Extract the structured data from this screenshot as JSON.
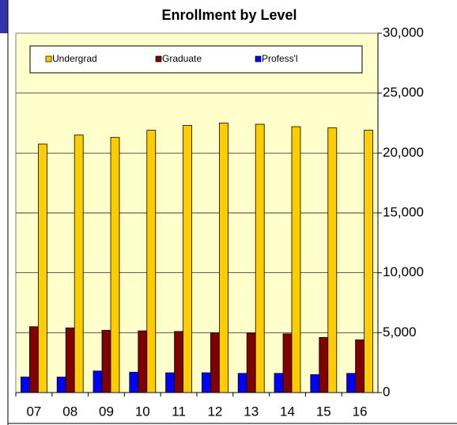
{
  "chart_data": {
    "type": "bar",
    "title": "Enrollment  by Level",
    "categories": [
      "07",
      "08",
      "09",
      "10",
      "11",
      "12",
      "13",
      "14",
      "15",
      "16"
    ],
    "series": [
      {
        "name": "Undergrad",
        "color": "#ffcc00",
        "values": [
          20750,
          21500,
          21300,
          21900,
          22300,
          22500,
          22400,
          22200,
          22100,
          21900
        ]
      },
      {
        "name": "Graduate",
        "color": "#800000",
        "values": [
          5500,
          5400,
          5200,
          5150,
          5100,
          5000,
          4950,
          4900,
          4600,
          4400
        ]
      },
      {
        "name": "Profess'l",
        "color": "#0000ff",
        "values": [
          1300,
          1300,
          1800,
          1700,
          1650,
          1650,
          1600,
          1600,
          1500,
          1600
        ]
      }
    ],
    "ylim": [
      0,
      30000
    ],
    "yticks": [
      0,
      {
        "value": 5000,
        "label": "5,000"
      },
      {
        "value": 10000,
        "label": "10,000"
      },
      {
        "value": 15000,
        "label": "15,000"
      },
      {
        "value": 20000,
        "label": "20,000"
      },
      {
        "value": 25000,
        "label": "25,000"
      },
      {
        "value": 30000,
        "label": "30,000"
      }
    ],
    "grid": true,
    "legend": "top"
  }
}
